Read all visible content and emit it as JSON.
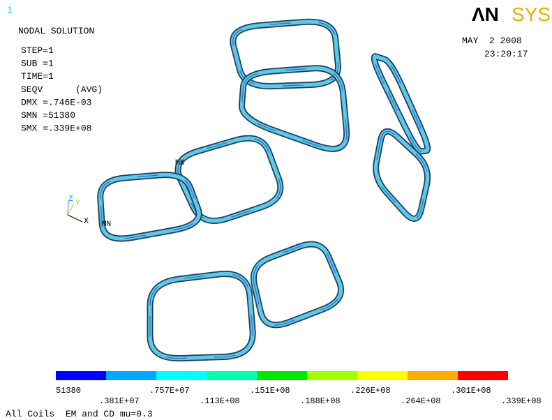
{
  "window_number": "1",
  "logo": {
    "left": "ΛN",
    "right": "SYS"
  },
  "info": [
    "NODAL SOLUTION",
    "STEP=1",
    "SUB =1",
    "TIME=1",
    "SEQV      (AVG)",
    "DMX =.746E-03",
    "SMN =51380",
    "SMX =.339E+08"
  ],
  "date": "MAY  2 2008",
  "time": "23:20:17",
  "markers": {
    "max": "MX",
    "min": "MN"
  },
  "triad": {
    "x": "X",
    "y": "Y",
    "z": "Z"
  },
  "legend": {
    "colors": [
      "#0000ff",
      "#00a6ff",
      "#00ffff",
      "#00ffb2",
      "#00e600",
      "#a6ff00",
      "#ffff00",
      "#ffae00",
      "#ff0000"
    ],
    "labels": [
      "51380",
      ".381E+07",
      ".757E+07",
      ".113E+08",
      ".151E+08",
      ".188E+08",
      ".226E+08",
      ".264E+08",
      ".301E+08",
      ".339E+08"
    ]
  },
  "caption": "All Coils  EM and CD mu=0.3"
}
